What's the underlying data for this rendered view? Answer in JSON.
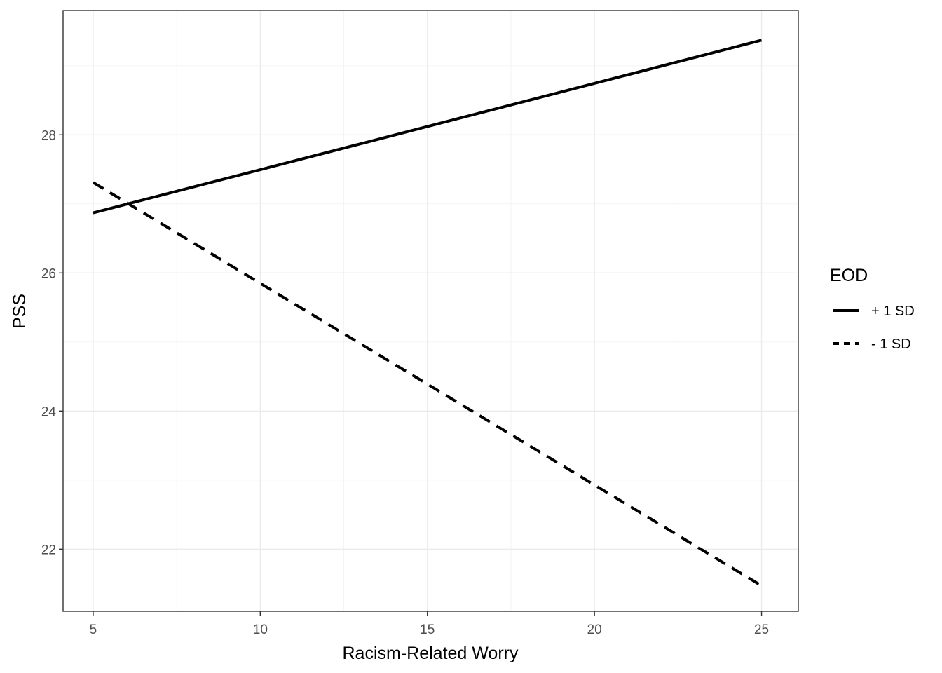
{
  "chart_data": {
    "type": "line",
    "xlabel": "Racism-Related Worry",
    "ylabel": "PSS",
    "xlim": [
      4.1,
      26.1
    ],
    "ylim": [
      21.1,
      29.8
    ],
    "x_ticks": [
      5,
      10,
      15,
      20,
      25
    ],
    "y_ticks": [
      22,
      24,
      26,
      28
    ],
    "grid": true,
    "legend": {
      "title": "EOD",
      "position": "right"
    },
    "series": [
      {
        "name": "+ 1 SD",
        "style": "solid",
        "x": [
          5,
          25
        ],
        "y": [
          26.87,
          29.37
        ],
        "color": "#000000"
      },
      {
        "name": "- 1 SD",
        "style": "dashed",
        "x": [
          5,
          25
        ],
        "y": [
          27.31,
          21.47
        ],
        "color": "#000000"
      }
    ]
  }
}
